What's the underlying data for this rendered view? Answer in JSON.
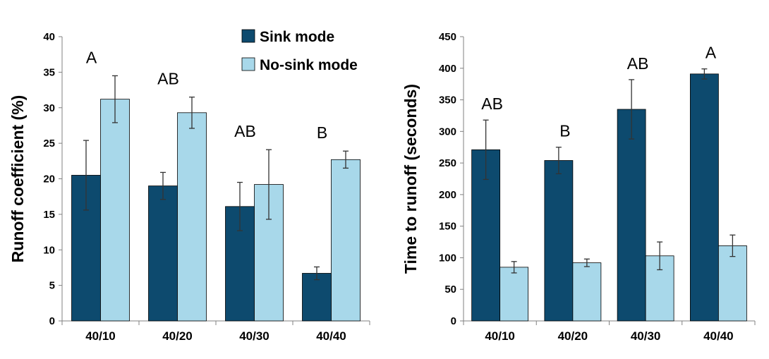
{
  "colors": {
    "sink": "#0d4a6e",
    "nosink": "#a8d8ea",
    "axis": "#808080",
    "error": "#333333"
  },
  "legend": {
    "items": [
      "Sink mode",
      "No-sink mode"
    ]
  },
  "chart_data": [
    {
      "type": "bar",
      "categories": [
        "40/10",
        "40/20",
        "40/30",
        "40/40"
      ],
      "ylabel": "Runoff coefficient (%)",
      "ylim": [
        0,
        40
      ],
      "yticks": [
        0,
        5,
        10,
        15,
        20,
        25,
        30,
        35,
        40
      ],
      "grid": false,
      "series": [
        {
          "name": "Sink mode",
          "values": [
            20.5,
            19.0,
            16.1,
            6.7
          ],
          "errors": [
            4.9,
            1.9,
            3.4,
            0.9
          ]
        },
        {
          "name": "No-sink mode",
          "values": [
            31.2,
            29.3,
            19.2,
            22.7
          ],
          "errors": [
            3.3,
            2.2,
            4.9,
            1.2
          ]
        }
      ],
      "annotations": [
        "A",
        "AB",
        "AB",
        "B"
      ]
    },
    {
      "type": "bar",
      "categories": [
        "40/10",
        "40/20",
        "40/30",
        "40/40"
      ],
      "ylabel": "Time to runoff (seconds)",
      "ylim": [
        0,
        450
      ],
      "yticks": [
        0,
        50,
        100,
        150,
        200,
        250,
        300,
        350,
        400,
        450
      ],
      "grid": false,
      "series": [
        {
          "name": "Sink mode",
          "values": [
            271,
            254,
            335,
            391
          ],
          "errors": [
            47,
            21,
            47,
            8
          ]
        },
        {
          "name": "No-sink mode",
          "values": [
            85,
            92,
            103,
            119
          ],
          "errors": [
            9,
            6,
            22,
            17
          ]
        }
      ],
      "annotations": [
        "AB",
        "B",
        "AB",
        "A"
      ]
    }
  ]
}
